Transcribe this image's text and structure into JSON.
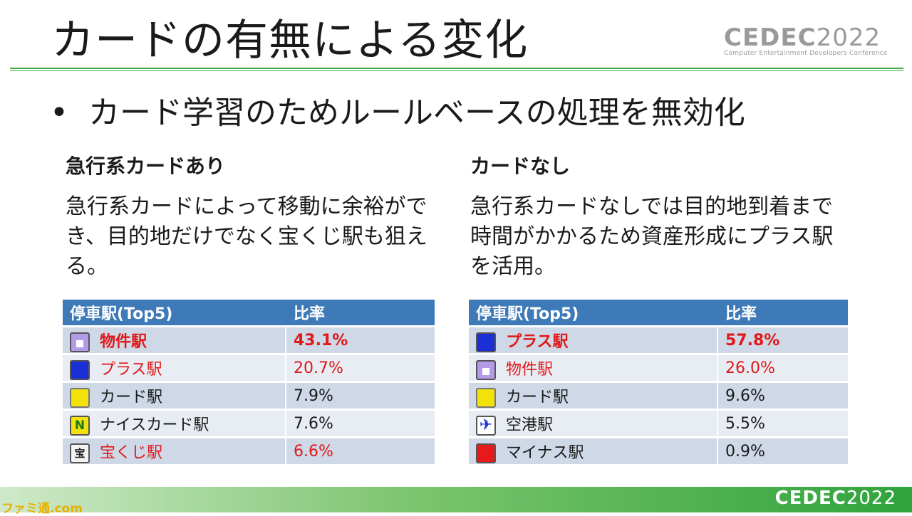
{
  "slide": {
    "title": "カードの有無による変化",
    "bullet": "カード学習のためルールベースの処理を無効化",
    "bullet_marker": "•"
  },
  "logo": {
    "main_bold": "CEDEC",
    "main_year": "2022",
    "subtitle": "Computer Entertainment Developers Conference"
  },
  "left": {
    "heading": "急行系カードあり",
    "description": "急行系カードによって移動に余裕ができ、目的地だけでなく宝くじ駅も狙える。",
    "table": {
      "headers": [
        "停車駅(Top5)",
        "比率"
      ],
      "rows": [
        {
          "icon": "house-icon",
          "station": "物件駅",
          "ratio": "43.1%",
          "style": "red bold"
        },
        {
          "icon": "blue-square-icon",
          "station": "プラス駅",
          "ratio": "20.7%",
          "style": "red"
        },
        {
          "icon": "yellow-square-icon",
          "station": "カード駅",
          "ratio": "7.9%",
          "style": ""
        },
        {
          "icon": "n-icon",
          "station": "ナイスカード駅",
          "ratio": "7.6%",
          "style": ""
        },
        {
          "icon": "takara-icon",
          "station": "宝くじ駅",
          "ratio": "6.6%",
          "style": "red"
        }
      ]
    }
  },
  "right": {
    "heading": "カードなし",
    "description": "急行系カードなしでは目的地到着まで時間がかかるため資産形成にプラス駅を活用。",
    "table": {
      "headers": [
        "停車駅(Top5)",
        "比率"
      ],
      "rows": [
        {
          "icon": "blue-square-icon",
          "station": "プラス駅",
          "ratio": "57.8%",
          "style": "red bold"
        },
        {
          "icon": "house-icon",
          "station": "物件駅",
          "ratio": "26.0%",
          "style": "red"
        },
        {
          "icon": "yellow-square-icon",
          "station": "カード駅",
          "ratio": "9.6%",
          "style": ""
        },
        {
          "icon": "airplane-icon",
          "station": "空港駅",
          "ratio": "5.5%",
          "style": ""
        },
        {
          "icon": "red-square-icon",
          "station": "マイナス駅",
          "ratio": "0.9%",
          "style": ""
        }
      ]
    }
  },
  "icon_glyphs": {
    "n-icon": "N",
    "takara-icon": "宝",
    "airplane-icon": "✈"
  },
  "footer": {
    "logo_bold": "CEDEC",
    "logo_year": "2022",
    "watermark": "ファミ通.com"
  }
}
